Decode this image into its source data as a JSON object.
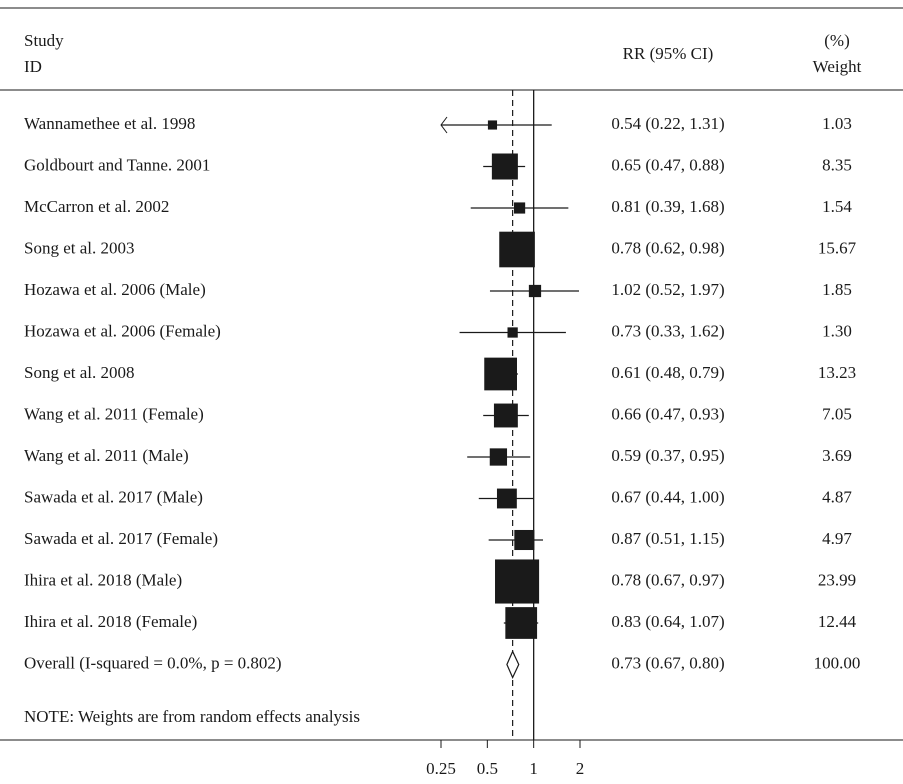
{
  "chart_data": {
    "type": "forest",
    "headers": {
      "study": "Study",
      "id": "ID",
      "estimate": "RR (95% CI)",
      "weight_unit": "(%)",
      "weight": "Weight"
    },
    "categories": [
      "Wannamethee et al. 1998",
      "Goldbourt and Tanne. 2001",
      "McCarron et al. 2002",
      "Song et al. 2003",
      "Hozawa et al. 2006 (Male)",
      "Hozawa et al. 2006 (Female)",
      "Song et al. 2008",
      "Wang et al. 2011 (Female)",
      "Wang et al. 2011 (Male)",
      "Sawada et al. 2017 (Male)",
      "Sawada et al. 2017 (Female)",
      "Ihira et al. 2018 (Male)",
      "Ihira et al. 2018 (Female)"
    ],
    "values": [
      0.54,
      0.65,
      0.81,
      0.78,
      1.02,
      0.73,
      0.61,
      0.66,
      0.59,
      0.67,
      0.87,
      0.78,
      0.83
    ],
    "lower": [
      0.22,
      0.47,
      0.39,
      0.62,
      0.52,
      0.33,
      0.48,
      0.47,
      0.37,
      0.44,
      0.51,
      0.67,
      0.64
    ],
    "upper": [
      1.31,
      0.88,
      1.68,
      0.98,
      1.97,
      1.62,
      0.79,
      0.93,
      0.95,
      1.0,
      1.15,
      0.97,
      1.07
    ],
    "value_labels": [
      "0.54 (0.22, 1.31)",
      "0.65 (0.47, 0.88)",
      "0.81 (0.39, 1.68)",
      "0.78 (0.62, 0.98)",
      "1.02 (0.52, 1.97)",
      "0.73 (0.33, 1.62)",
      "0.61 (0.48, 0.79)",
      "0.66 (0.47, 0.93)",
      "0.59 (0.37, 0.95)",
      "0.67 (0.44, 1.00)",
      "0.87 (0.51, 1.15)",
      "0.78 (0.67, 0.97)",
      "0.83 (0.64, 1.07)"
    ],
    "weights": [
      1.03,
      8.35,
      1.54,
      15.67,
      1.85,
      1.3,
      13.23,
      7.05,
      3.69,
      4.87,
      4.97,
      23.99,
      12.44
    ],
    "weight_labels": [
      "1.03",
      "8.35",
      "1.54",
      "15.67",
      "1.85",
      "1.30",
      "13.23",
      "7.05",
      "3.69",
      "4.87",
      "4.97",
      "23.99",
      "12.44"
    ],
    "overall": {
      "name": "Overall (I-squared = 0.0%, p = 0.802)",
      "value": 0.73,
      "lower": 0.67,
      "upper": 0.8,
      "value_label": "0.73 (0.67, 0.80)",
      "weight": 100,
      "weight_label": "100.00"
    },
    "note": "NOTE: Weights are from random effects analysis",
    "xscale": "log",
    "xlim": [
      0.25,
      2
    ],
    "xticks": [
      0.25,
      0.5,
      1,
      2
    ],
    "reference_line": 1,
    "color": "#1a1a1a"
  }
}
